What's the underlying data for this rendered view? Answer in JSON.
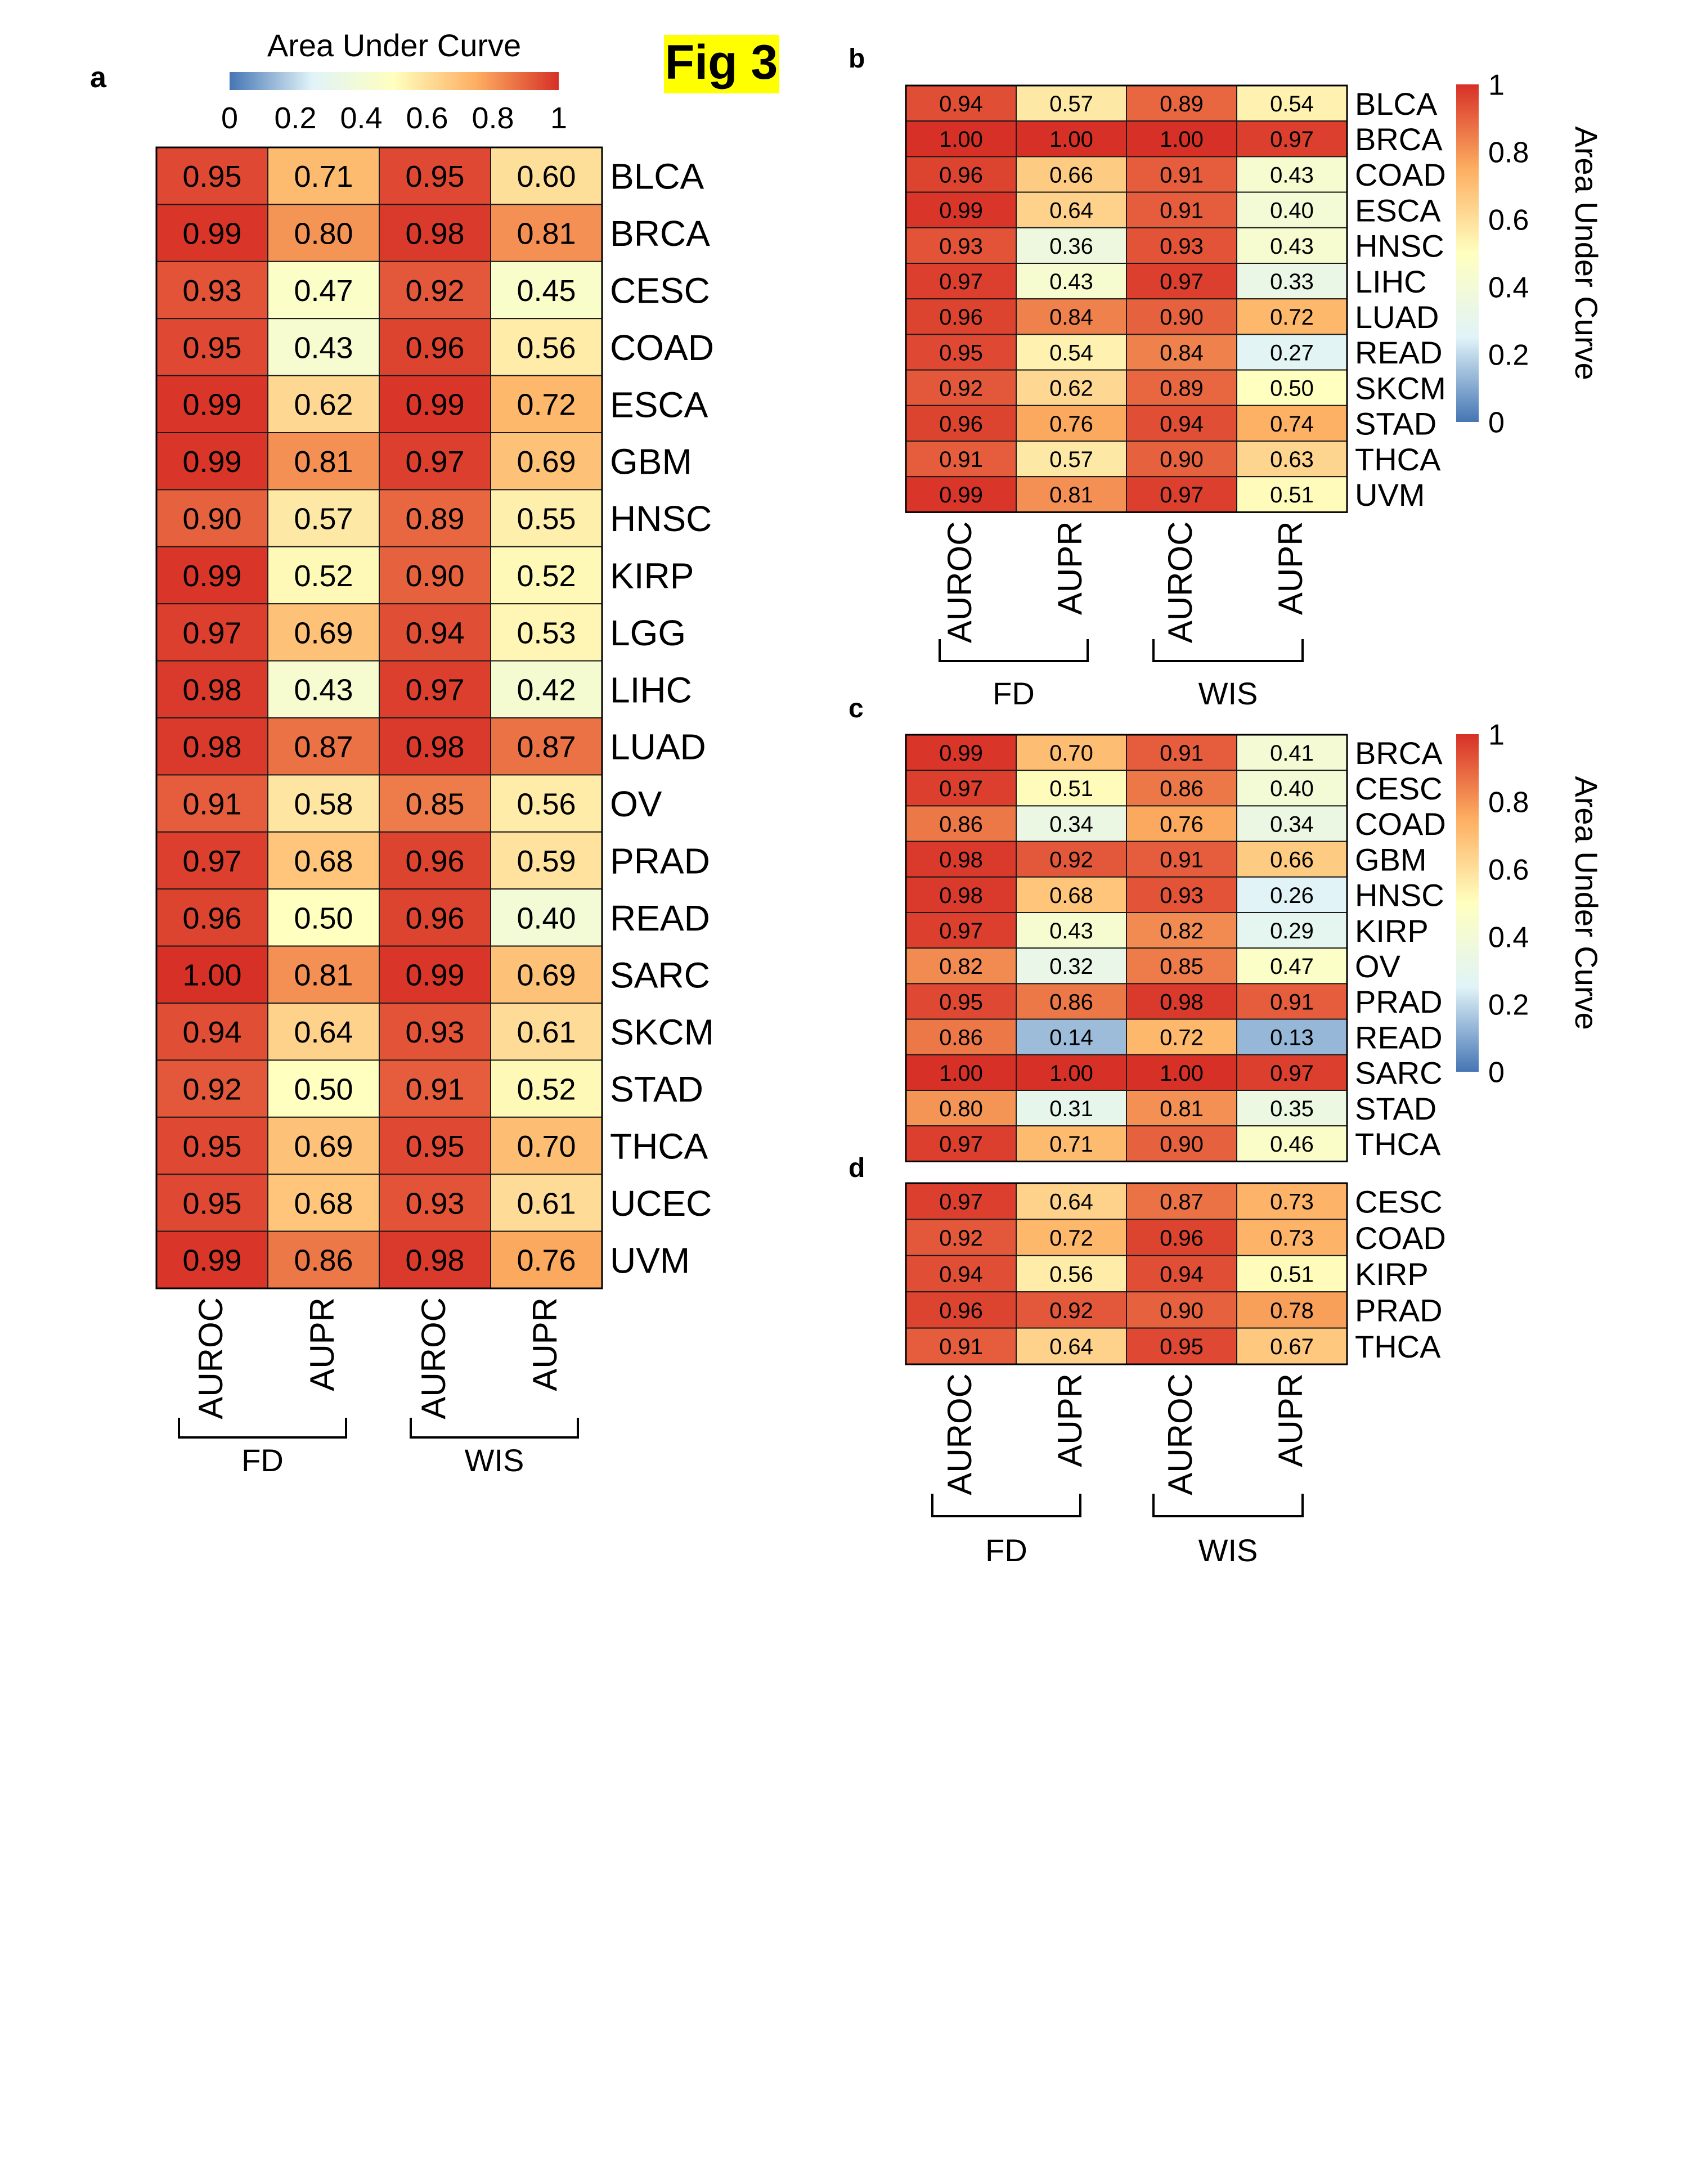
{
  "figure_title": "Fig 3",
  "colors": {
    "scale": [
      "#4575b4",
      "#e0f3f8",
      "#ffffbf",
      "#fdae61",
      "#d73027"
    ],
    "title_highlight": "#ffff00"
  },
  "chart_data": [
    {
      "panel": "a",
      "type": "heatmap",
      "legend_title": "Area Under Curve",
      "legend_ticks": [
        "0",
        "0.2",
        "0.4",
        "0.6",
        "0.8",
        "1"
      ],
      "range": [
        0,
        1
      ],
      "legend_placement": "top-horizontal",
      "columns": [
        "AUROC",
        "AUPR",
        "AUROC",
        "AUPR"
      ],
      "groups": [
        "FD",
        "WIS"
      ],
      "rows": [
        "BLCA",
        "BRCA",
        "CESC",
        "COAD",
        "ESCA",
        "GBM",
        "HNSC",
        "KIRP",
        "LGG",
        "LIHC",
        "LUAD",
        "OV",
        "PRAD",
        "READ",
        "SARC",
        "SKCM",
        "STAD",
        "THCA",
        "UCEC",
        "UVM"
      ],
      "values": [
        [
          0.95,
          0.71,
          0.95,
          0.6
        ],
        [
          0.99,
          0.8,
          0.98,
          0.81
        ],
        [
          0.93,
          0.47,
          0.92,
          0.45
        ],
        [
          0.95,
          0.43,
          0.96,
          0.56
        ],
        [
          0.99,
          0.62,
          0.99,
          0.72
        ],
        [
          0.99,
          0.81,
          0.97,
          0.69
        ],
        [
          0.9,
          0.57,
          0.89,
          0.55
        ],
        [
          0.99,
          0.52,
          0.9,
          0.52
        ],
        [
          0.97,
          0.69,
          0.94,
          0.53
        ],
        [
          0.98,
          0.43,
          0.97,
          0.42
        ],
        [
          0.98,
          0.87,
          0.98,
          0.87
        ],
        [
          0.91,
          0.58,
          0.85,
          0.56
        ],
        [
          0.97,
          0.68,
          0.96,
          0.59
        ],
        [
          0.96,
          0.5,
          0.96,
          0.4
        ],
        [
          1.0,
          0.81,
          0.99,
          0.69
        ],
        [
          0.94,
          0.64,
          0.93,
          0.61
        ],
        [
          0.92,
          0.5,
          0.91,
          0.52
        ],
        [
          0.95,
          0.69,
          0.95,
          0.7
        ],
        [
          0.95,
          0.68,
          0.93,
          0.61
        ],
        [
          0.99,
          0.86,
          0.98,
          0.76
        ]
      ]
    },
    {
      "panel": "b",
      "type": "heatmap",
      "legend_title": "Area Under Curve",
      "legend_ticks": [
        "0",
        "0.2",
        "0.4",
        "0.6",
        "0.8",
        "1"
      ],
      "range": [
        0,
        1
      ],
      "legend_placement": "right-vertical",
      "columns": [
        "AUROC",
        "AUPR",
        "AUROC",
        "AUPR"
      ],
      "groups": [
        "FD",
        "WIS"
      ],
      "rows": [
        "BLCA",
        "BRCA",
        "COAD",
        "ESCA",
        "HNSC",
        "LIHC",
        "LUAD",
        "READ",
        "SKCM",
        "STAD",
        "THCA",
        "UVM"
      ],
      "values": [
        [
          0.94,
          0.57,
          0.89,
          0.54
        ],
        [
          1.0,
          1.0,
          1.0,
          0.97
        ],
        [
          0.96,
          0.66,
          0.91,
          0.43
        ],
        [
          0.99,
          0.64,
          0.91,
          0.4
        ],
        [
          0.93,
          0.36,
          0.93,
          0.43
        ],
        [
          0.97,
          0.43,
          0.97,
          0.33
        ],
        [
          0.96,
          0.84,
          0.9,
          0.72
        ],
        [
          0.95,
          0.54,
          0.84,
          0.27
        ],
        [
          0.92,
          0.62,
          0.89,
          0.5
        ],
        [
          0.96,
          0.76,
          0.94,
          0.74
        ],
        [
          0.91,
          0.57,
          0.9,
          0.63
        ],
        [
          0.99,
          0.81,
          0.97,
          0.51
        ]
      ]
    },
    {
      "panel": "c",
      "type": "heatmap",
      "legend_title": "Area Under Curve",
      "legend_ticks": [
        "0",
        "0.2",
        "0.4",
        "0.6",
        "0.8",
        "1"
      ],
      "range": [
        0,
        1
      ],
      "legend_placement": "right-vertical",
      "columns": [
        "AUROC",
        "AUPR",
        "AUROC",
        "AUPR"
      ],
      "groups": [],
      "rows": [
        "BRCA",
        "CESC",
        "COAD",
        "GBM",
        "HNSC",
        "KIRP",
        "OV",
        "PRAD",
        "READ",
        "SARC",
        "STAD",
        "THCA"
      ],
      "values": [
        [
          0.99,
          0.7,
          0.91,
          0.41
        ],
        [
          0.97,
          0.51,
          0.86,
          0.4
        ],
        [
          0.86,
          0.34,
          0.76,
          0.34
        ],
        [
          0.98,
          0.92,
          0.91,
          0.66
        ],
        [
          0.98,
          0.68,
          0.93,
          0.26
        ],
        [
          0.97,
          0.43,
          0.82,
          0.29
        ],
        [
          0.82,
          0.32,
          0.85,
          0.47
        ],
        [
          0.95,
          0.86,
          0.98,
          0.91
        ],
        [
          0.86,
          0.14,
          0.72,
          0.13
        ],
        [
          1.0,
          1.0,
          1.0,
          0.97
        ],
        [
          0.8,
          0.31,
          0.81,
          0.35
        ],
        [
          0.97,
          0.71,
          0.9,
          0.46
        ]
      ]
    },
    {
      "panel": "d",
      "type": "heatmap",
      "columns": [
        "AUROC",
        "AUPR",
        "AUROC",
        "AUPR"
      ],
      "groups": [
        "FD",
        "WIS"
      ],
      "rows": [
        "CESC",
        "COAD",
        "KIRP",
        "PRAD",
        "THCA"
      ],
      "values": [
        [
          0.97,
          0.64,
          0.87,
          0.73
        ],
        [
          0.92,
          0.72,
          0.96,
          0.73
        ],
        [
          0.94,
          0.56,
          0.94,
          0.51
        ],
        [
          0.96,
          0.92,
          0.9,
          0.78
        ],
        [
          0.91,
          0.64,
          0.95,
          0.67
        ]
      ]
    }
  ]
}
